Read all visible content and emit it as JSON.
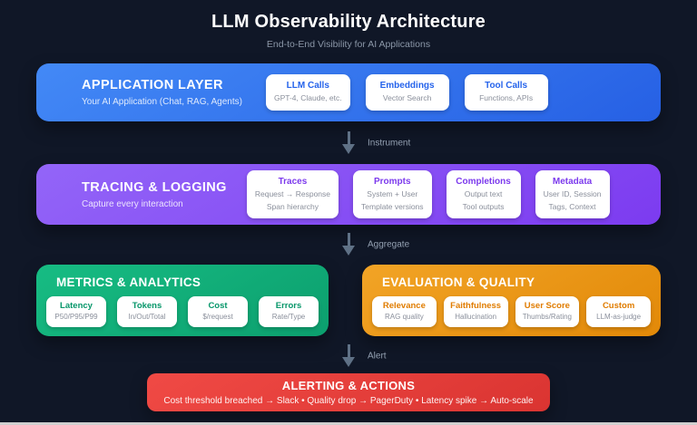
{
  "header": {
    "title": "LLM Observability Architecture",
    "subtitle": "End-to-End Visibility for AI Applications"
  },
  "connectors": {
    "instrument": "Instrument",
    "aggregate": "Aggregate",
    "alert": "Alert"
  },
  "layers": {
    "application": {
      "title": "APPLICATION LAYER",
      "subtitle": "Your AI Application (Chat, RAG, Agents)",
      "accent": "#2563eb",
      "cards": [
        {
          "title": "LLM Calls",
          "sub": "GPT-4, Claude, etc."
        },
        {
          "title": "Embeddings",
          "sub": "Vector Search"
        },
        {
          "title": "Tool Calls",
          "sub": "Functions, APIs"
        }
      ]
    },
    "tracing": {
      "title": "TRACING & LOGGING",
      "subtitle": "Capture every interaction",
      "accent": "#7c3aed",
      "cards": [
        {
          "title": "Traces",
          "sub1": "Request → Response",
          "sub2": "Span hierarchy"
        },
        {
          "title": "Prompts",
          "sub1": "System + User",
          "sub2": "Template versions"
        },
        {
          "title": "Completions",
          "sub1": "Output text",
          "sub2": "Tool outputs"
        },
        {
          "title": "Metadata",
          "sub1": "User ID, Session",
          "sub2": "Tags, Context"
        }
      ]
    },
    "metrics": {
      "title": "METRICS & ANALYTICS",
      "accent": "#059669",
      "cards": [
        {
          "title": "Latency",
          "sub": "P50/P95/P99"
        },
        {
          "title": "Tokens",
          "sub": "In/Out/Total"
        },
        {
          "title": "Cost",
          "sub": "$/request"
        },
        {
          "title": "Errors",
          "sub": "Rate/Type"
        }
      ]
    },
    "evaluation": {
      "title": "EVALUATION & QUALITY",
      "accent": "#e07c00",
      "cards": [
        {
          "title": "Relevance",
          "sub": "RAG quality"
        },
        {
          "title": "Faithfulness",
          "sub": "Hallucination"
        },
        {
          "title": "User Score",
          "sub": "Thumbs/Rating"
        },
        {
          "title": "Custom",
          "sub": "LLM-as-judge"
        }
      ]
    },
    "alerting": {
      "title": "ALERTING & ACTIONS",
      "subtitle": "Cost threshold breached → Slack • Quality drop → PagerDuty • Latency spike → Auto-scale"
    }
  },
  "colors": {
    "background": "#101727",
    "application_gradient": [
      "#4389f6",
      "#2660e4"
    ],
    "tracing_gradient": [
      "#9365f8",
      "#7c3bf0"
    ],
    "metrics_gradient": [
      "#17bc83",
      "#0c9f6e"
    ],
    "evaluation_gradient": [
      "#f2a426",
      "#e28908"
    ],
    "alerting_gradient": [
      "#f04a45",
      "#da3431"
    ],
    "arrow": "#5f7186",
    "connector_label": "#94a1b2"
  }
}
